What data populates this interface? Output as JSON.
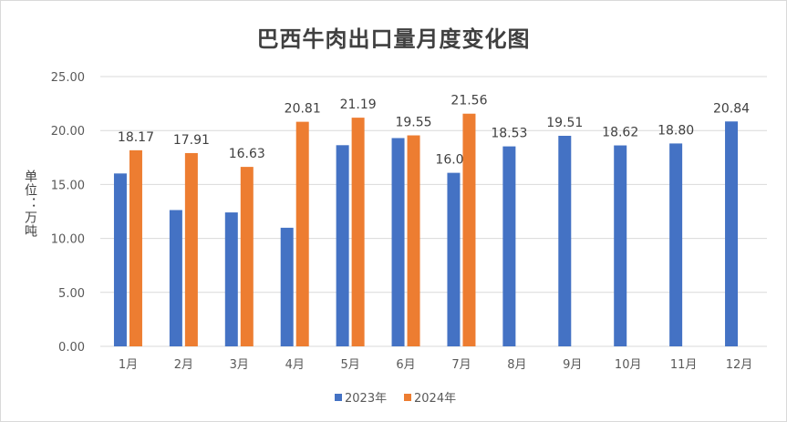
{
  "chart_data": {
    "type": "bar",
    "title": "巴西牛肉出口量月度变化图",
    "xlabel": "",
    "ylabel": "单位：万吨",
    "ylim": [
      0,
      25
    ],
    "yticks": [
      "0.00",
      "5.00",
      "10.00",
      "15.00",
      "20.00",
      "25.00"
    ],
    "grid": true,
    "legend_position": "bottom",
    "categories": [
      "1月",
      "2月",
      "3月",
      "4月",
      "5月",
      "6月",
      "7月",
      "8月",
      "9月",
      "10月",
      "11月",
      "12月"
    ],
    "series": [
      {
        "name": "2023年",
        "color": "#4472C4",
        "values": [
          16.02,
          12.63,
          12.41,
          10.99,
          18.64,
          19.3,
          16.08,
          18.53,
          19.51,
          18.62,
          18.8,
          20.84
        ],
        "labels": [
          null,
          null,
          null,
          null,
          null,
          null,
          "16.08",
          "18.53",
          "19.51",
          "18.62",
          "18.80",
          "20.84"
        ]
      },
      {
        "name": "2024年",
        "color": "#ED7D31",
        "values": [
          18.17,
          17.91,
          16.63,
          20.81,
          21.19,
          19.55,
          21.56,
          null,
          null,
          null,
          null,
          null
        ],
        "labels": [
          "18.17",
          "17.91",
          "16.63",
          "20.81",
          "21.19",
          "19.55",
          "21.56",
          null,
          null,
          null,
          null,
          null
        ]
      }
    ]
  }
}
